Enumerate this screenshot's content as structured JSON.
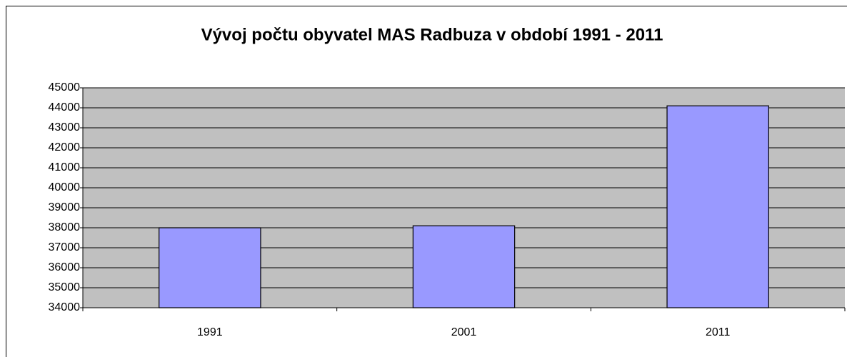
{
  "chart_data": {
    "type": "bar",
    "title": "Vývoj počtu obyvatel MAS Radbuza v období 1991 - 2011",
    "categories": [
      "1991",
      "2001",
      "2011"
    ],
    "values": [
      38000,
      38100,
      44100
    ],
    "color": "#9999ff",
    "ylim": [
      34000,
      45000
    ],
    "yticks": [
      34000,
      35000,
      36000,
      37000,
      38000,
      39000,
      40000,
      41000,
      42000,
      43000,
      44000,
      45000
    ],
    "grid": true
  }
}
